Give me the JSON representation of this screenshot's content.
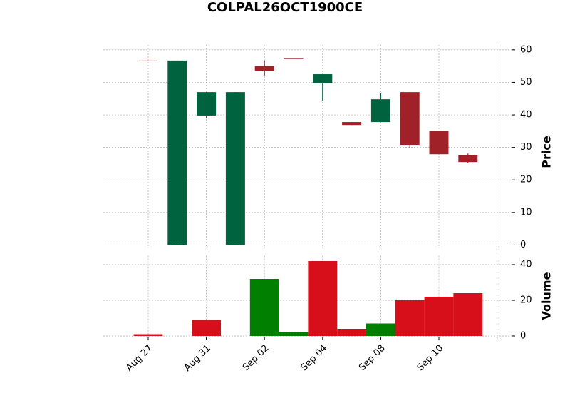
{
  "chart_data": {
    "type": "candlestick",
    "title": "COLPAL26OCT1900CE",
    "categories": [
      "Aug 27",
      null,
      "Aug 31",
      null,
      "Sep 02",
      null,
      "Sep 04",
      null,
      "Sep 08",
      null,
      "Sep 10",
      null
    ],
    "open": [
      56.7,
      0,
      39.8,
      0,
      55.0,
      57.4,
      49.7,
      37.8,
      37.8,
      47.0,
      35.0,
      27.7
    ],
    "high": [
      56.7,
      56.7,
      47.0,
      47.0,
      56.7,
      57.4,
      52.5,
      37.8,
      46.6,
      47.0,
      35.0,
      28.1
    ],
    "low": [
      56.7,
      0,
      38.9,
      0,
      52.1,
      57.4,
      44.4,
      36.9,
      37.8,
      29.9,
      27.9,
      25.1
    ],
    "close": [
      56.7,
      56.7,
      47.0,
      47.0,
      53.6,
      57.4,
      52.5,
      36.9,
      44.8,
      30.8,
      27.9,
      25.5
    ],
    "volume": [
      1,
      0,
      9,
      0,
      32,
      2,
      42,
      4,
      7,
      20,
      22,
      24
    ],
    "up_color": "#006340",
    "down_color": "#a02128",
    "volume_colors": [
      "#d60f1a",
      "#d60f1a",
      "#d60f1a",
      "#007f00",
      "#007f00",
      "#007f00",
      "#d60f1a",
      "#d60f1a",
      "#007f00",
      "#d60f1a",
      "#d60f1a",
      "#d60f1a"
    ],
    "ylabel": "Price",
    "ylim": [
      -1,
      61.5
    ],
    "yticks": [
      0,
      10,
      20,
      30,
      40,
      50,
      60
    ],
    "volume_ylabel": "Volume",
    "volume_ylim": [
      -0.4,
      45
    ],
    "volume_yticks": [
      0,
      20,
      40
    ],
    "grid": true
  }
}
